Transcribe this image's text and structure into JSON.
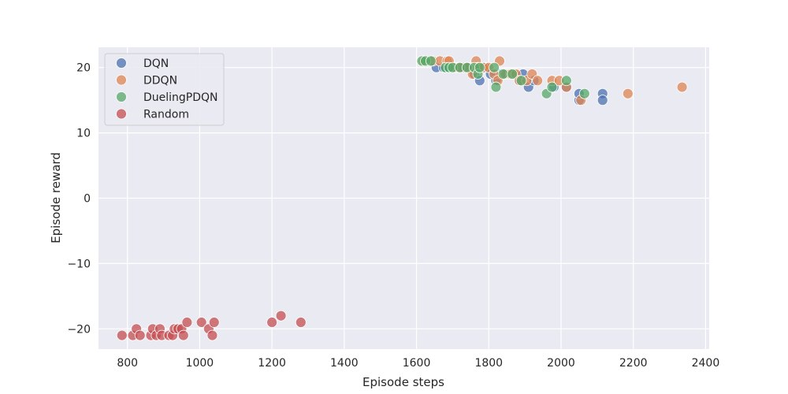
{
  "chart_data": {
    "type": "scatter",
    "title": "",
    "xlabel": "Episode steps",
    "ylabel": "Episode reward",
    "xlim": [
      720,
      2410
    ],
    "ylim": [
      -23.1,
      23.1
    ],
    "xticks": [
      800,
      1000,
      1200,
      1400,
      1600,
      1800,
      2000,
      2200,
      2400
    ],
    "yticks": [
      -20,
      -10,
      0,
      10,
      20
    ],
    "grid": true,
    "legend_position": "top-left",
    "series": [
      {
        "name": "DQN",
        "color": "#4c72b0",
        "points": [
          [
            1655,
            20
          ],
          [
            1675,
            20
          ],
          [
            1690,
            20
          ],
          [
            1710,
            20
          ],
          [
            1730,
            20
          ],
          [
            1745,
            20
          ],
          [
            1760,
            19
          ],
          [
            1775,
            18
          ],
          [
            1790,
            20
          ],
          [
            1805,
            19
          ],
          [
            1820,
            18
          ],
          [
            1835,
            19
          ],
          [
            1850,
            19
          ],
          [
            1870,
            19
          ],
          [
            1885,
            18
          ],
          [
            1895,
            19
          ],
          [
            1910,
            17
          ],
          [
            1925,
            18
          ],
          [
            1980,
            17
          ],
          [
            2015,
            17
          ],
          [
            2050,
            15
          ],
          [
            2050,
            16
          ],
          [
            2115,
            16
          ],
          [
            2115,
            15
          ]
        ]
      },
      {
        "name": "DDQN",
        "color": "#dd8452",
        "points": [
          [
            1620,
            21
          ],
          [
            1645,
            21
          ],
          [
            1665,
            21
          ],
          [
            1685,
            21
          ],
          [
            1690,
            21
          ],
          [
            1705,
            20
          ],
          [
            1720,
            20
          ],
          [
            1740,
            20
          ],
          [
            1755,
            19
          ],
          [
            1765,
            21
          ],
          [
            1770,
            20
          ],
          [
            1785,
            20
          ],
          [
            1800,
            20
          ],
          [
            1815,
            19
          ],
          [
            1825,
            18
          ],
          [
            1830,
            21
          ],
          [
            1845,
            19
          ],
          [
            1860,
            19
          ],
          [
            1875,
            19
          ],
          [
            1885,
            18
          ],
          [
            1905,
            18
          ],
          [
            1920,
            19
          ],
          [
            1935,
            18
          ],
          [
            1975,
            18
          ],
          [
            1995,
            18
          ],
          [
            2015,
            17
          ],
          [
            2055,
            15
          ],
          [
            2185,
            16
          ],
          [
            2335,
            17
          ]
        ]
      },
      {
        "name": "DuelingPDQN",
        "color": "#55a868",
        "points": [
          [
            1615,
            21
          ],
          [
            1625,
            21
          ],
          [
            1640,
            21
          ],
          [
            1680,
            20
          ],
          [
            1690,
            20
          ],
          [
            1700,
            20
          ],
          [
            1720,
            20
          ],
          [
            1740,
            20
          ],
          [
            1760,
            20
          ],
          [
            1770,
            19
          ],
          [
            1775,
            20
          ],
          [
            1815,
            20
          ],
          [
            1820,
            17
          ],
          [
            1840,
            19
          ],
          [
            1865,
            19
          ],
          [
            1890,
            18
          ],
          [
            1960,
            16
          ],
          [
            1975,
            17
          ],
          [
            2015,
            18
          ],
          [
            2065,
            16
          ]
        ]
      },
      {
        "name": "Random",
        "color": "#c44e52",
        "points": [
          [
            785,
            -21
          ],
          [
            815,
            -21
          ],
          [
            825,
            -20
          ],
          [
            835,
            -21
          ],
          [
            865,
            -21
          ],
          [
            870,
            -20
          ],
          [
            880,
            -21
          ],
          [
            890,
            -20
          ],
          [
            895,
            -21
          ],
          [
            915,
            -21
          ],
          [
            925,
            -21
          ],
          [
            930,
            -20
          ],
          [
            940,
            -20
          ],
          [
            950,
            -20
          ],
          [
            955,
            -21
          ],
          [
            965,
            -19
          ],
          [
            1005,
            -19
          ],
          [
            1025,
            -20
          ],
          [
            1035,
            -21
          ],
          [
            1040,
            -19
          ],
          [
            1200,
            -19
          ],
          [
            1225,
            -18
          ],
          [
            1280,
            -19
          ]
        ]
      }
    ]
  }
}
